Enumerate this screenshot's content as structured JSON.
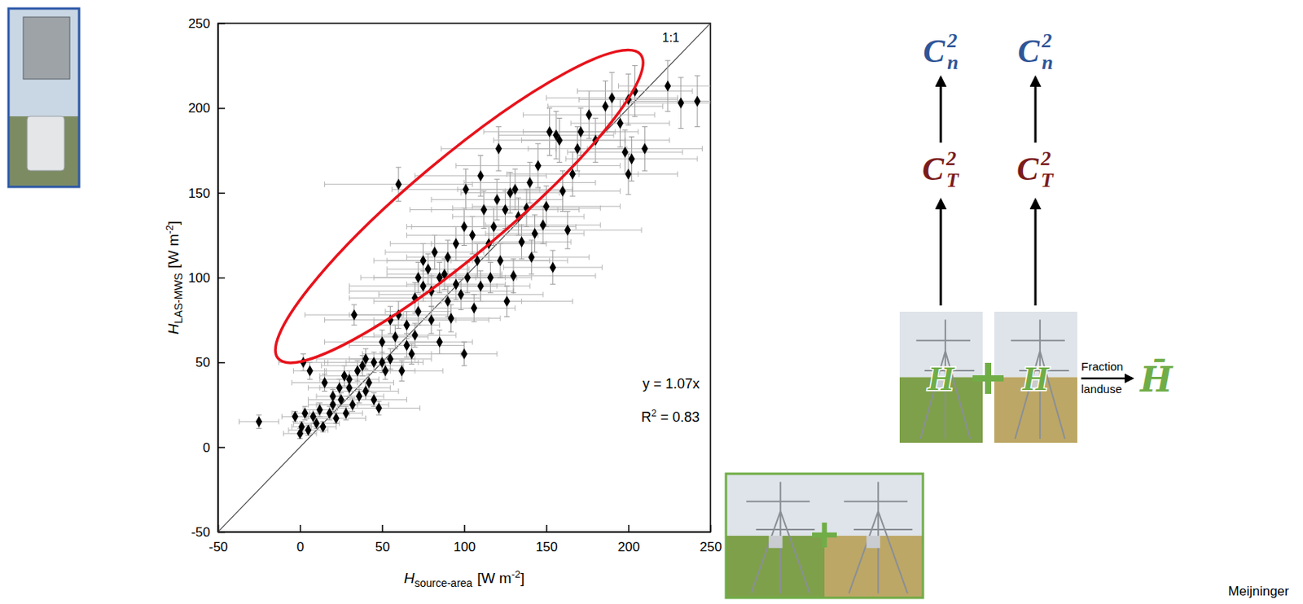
{
  "chart_data": {
    "type": "scatter",
    "x_label": {
      "symbol": "H",
      "sub": "source-area",
      "unit": "[W m",
      "unit_sup": "-2",
      "unit_end": "]"
    },
    "y_label": {
      "symbol": "H",
      "sub": "LAS-MWS",
      "unit": "[W m",
      "unit_sup": "-2",
      "unit_end": "]"
    },
    "marker": "diamond",
    "color": "#000000",
    "xlim": [
      -50,
      250
    ],
    "ylim": [
      -50,
      250
    ],
    "xticks": [
      -50,
      0,
      50,
      100,
      150,
      200,
      250
    ],
    "yticks": [
      -50,
      0,
      50,
      100,
      150,
      200,
      250
    ],
    "x": [
      -25,
      -3,
      0,
      1,
      2,
      3,
      5,
      6,
      8,
      10,
      12,
      14,
      15,
      18,
      20,
      20,
      22,
      24,
      25,
      27,
      28,
      30,
      30,
      32,
      33,
      35,
      36,
      38,
      40,
      40,
      42,
      45,
      45,
      48,
      50,
      50,
      52,
      55,
      55,
      58,
      60,
      60,
      62,
      65,
      65,
      68,
      70,
      70,
      72,
      72,
      75,
      75,
      78,
      80,
      80,
      82,
      85,
      85,
      88,
      90,
      90,
      92,
      95,
      95,
      98,
      100,
      100,
      101,
      102,
      105,
      106,
      108,
      110,
      110,
      112,
      115,
      116,
      118,
      120,
      121,
      122,
      125,
      126,
      128,
      130,
      131,
      133,
      135,
      138,
      140,
      141,
      143,
      145,
      148,
      154,
      150,
      152,
      156,
      158,
      160,
      163,
      166,
      169,
      171,
      176,
      180,
      186,
      190,
      195,
      198,
      200,
      202,
      204,
      200,
      210,
      224,
      232,
      242
    ],
    "values": [
      15,
      18,
      8,
      12,
      50,
      20,
      10,
      45,
      18,
      14,
      22,
      12,
      38,
      20,
      25,
      30,
      17,
      35,
      28,
      42,
      20,
      35,
      40,
      25,
      78,
      45,
      30,
      48,
      33,
      52,
      38,
      50,
      28,
      23,
      50,
      62,
      45,
      52,
      75,
      65,
      155,
      78,
      45,
      60,
      72,
      55,
      88,
      66,
      100,
      80,
      95,
      110,
      105,
      75,
      92,
      115,
      100,
      62,
      102,
      86,
      112,
      76,
      120,
      96,
      90,
      55,
      130,
      152,
      100,
      125,
      82,
      110,
      160,
      95,
      140,
      120,
      100,
      130,
      146,
      176,
      110,
      140,
      86,
      150,
      101,
      152,
      136,
      121,
      141,
      156,
      112,
      126,
      166,
      131,
      106,
      142,
      186,
      184,
      181,
      151,
      128,
      161,
      176,
      186,
      196,
      181,
      201,
      206,
      191,
      174,
      161,
      170,
      210,
      205,
      176,
      213,
      203,
      204
    ],
    "x_errors": [
      12,
      8,
      10,
      6,
      15,
      8,
      12,
      10,
      10,
      14,
      10,
      8,
      20,
      12,
      15,
      10,
      18,
      12,
      20,
      15,
      10,
      25,
      18,
      22,
      30,
      20,
      15,
      25,
      20,
      30,
      15,
      30,
      20,
      25,
      22,
      35,
      18,
      25,
      40,
      20,
      45,
      30,
      25,
      35,
      20,
      30,
      40,
      25,
      35,
      20,
      45,
      30,
      25,
      35,
      50,
      30,
      40,
      20,
      35,
      45,
      25,
      30,
      40,
      30,
      50,
      20,
      35,
      45,
      30,
      40,
      25,
      55,
      40,
      30,
      45,
      35,
      25,
      50,
      40,
      35,
      30,
      45,
      40,
      30,
      50,
      35,
      40,
      30,
      45,
      40,
      35,
      30,
      50,
      35,
      30,
      45,
      40,
      35,
      40,
      35,
      45,
      40,
      30,
      35,
      40,
      45,
      35,
      40,
      30,
      35,
      30,
      40,
      35,
      30,
      35,
      30,
      35,
      40
    ],
    "y_errors": [
      4,
      3,
      3,
      3,
      5,
      4,
      3,
      5,
      4,
      3,
      4,
      3,
      5,
      4,
      4,
      4,
      3,
      5,
      4,
      6,
      4,
      5,
      5,
      4,
      6,
      6,
      4,
      6,
      5,
      6,
      5,
      6,
      4,
      4,
      6,
      7,
      5,
      6,
      8,
      7,
      10,
      8,
      6,
      7,
      8,
      6,
      9,
      7,
      9,
      8,
      9,
      10,
      9,
      8,
      9,
      10,
      9,
      7,
      9,
      9,
      10,
      8,
      10,
      9,
      9,
      7,
      11,
      12,
      9,
      11,
      8,
      10,
      12,
      9,
      11,
      10,
      9,
      11,
      12,
      13,
      10,
      11,
      9,
      12,
      10,
      12,
      11,
      10,
      11,
      12,
      10,
      11,
      13,
      11,
      10,
      12,
      14,
      14,
      13,
      12,
      11,
      13,
      13,
      14,
      14,
      13,
      15,
      15,
      14,
      13,
      12,
      13,
      15,
      15,
      13,
      15,
      15,
      15
    ],
    "annotations": {
      "identity_line": "1:1",
      "fit": "y = 1.07x",
      "r2": {
        "text": "R",
        "sup": "2",
        "rest": " = 0.83"
      }
    }
  },
  "diagram": {
    "columns": [
      {
        "top": {
          "base": "C",
          "sub": "n",
          "sup": "2"
        },
        "middle": {
          "base": "C",
          "sub": "T",
          "sup": "2"
        },
        "photo_label": "H"
      },
      {
        "top": {
          "base": "C",
          "sub": "n",
          "sup": "2"
        },
        "middle": {
          "base": "C",
          "sub": "T",
          "sup": "2"
        },
        "photo_label": "H"
      }
    ],
    "arrow_top": "Fraction",
    "arrow_bottom": "landuse",
    "result": "H̄",
    "credit": "Meijninger"
  }
}
